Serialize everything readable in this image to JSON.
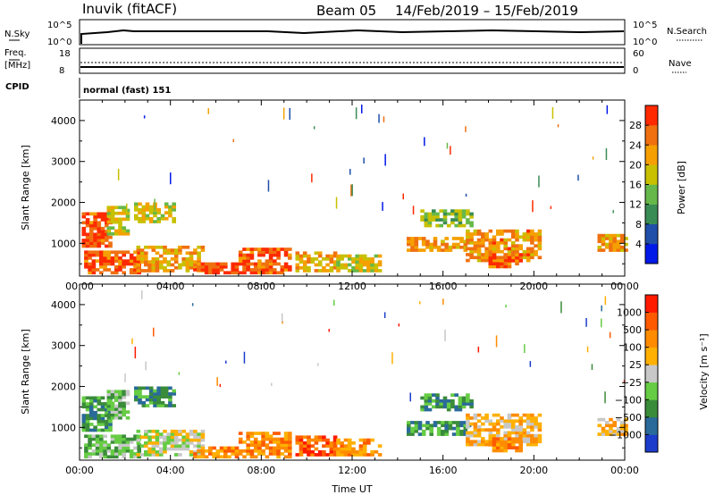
{
  "header": {
    "station": "Inuvik (fitACF)",
    "beam": "Beam 05",
    "date_range": "14/Feb/2019 – 15/Feb/2019"
  },
  "strip_nsky": {
    "left_label": "N.Sky",
    "left_ticks": [
      "10^5",
      "10^0"
    ],
    "right_ticks": [
      "10^5",
      "10^0"
    ],
    "right_label": "N.Search"
  },
  "strip_freq": {
    "left_label_top": "Freq.",
    "left_label_bottom": "[MHz]",
    "left_ticks": [
      "18",
      "8"
    ],
    "right_ticks": [
      "60",
      "0"
    ],
    "right_label": "Nave"
  },
  "strip_cpid": {
    "left_label": "CPID",
    "text": "normal (fast) 151"
  },
  "colors": {
    "power_scale": [
      "#0018e8",
      "#1f4fa8",
      "#3a8c55",
      "#66b84a",
      "#c8c000",
      "#f5a000",
      "#f07010",
      "#ff2a00"
    ],
    "velocity_scale": [
      "#ff1a00",
      "#ff5a00",
      "#ff8c00",
      "#ffb000",
      "#c8c8c8",
      "#66cc44",
      "#3a8c3a",
      "#2a6a9a",
      "#1c3ccc"
    ]
  },
  "chart_data": [
    {
      "type": "heatmap",
      "name": "power",
      "ylabel": "Slant Range [km]",
      "xlabel": "",
      "x_ticks": [
        "00:00",
        "04:00",
        "08:00",
        "12:00",
        "16:00",
        "20:00",
        "00:00"
      ],
      "y_ticks": [
        "1000",
        "2000",
        "3000",
        "4000"
      ],
      "ylim": [
        200,
        4500
      ],
      "xlim_hours": [
        0,
        24
      ],
      "colorbar_label": "Power [dB]",
      "colorbar_ticks": [
        "4",
        "8",
        "12",
        "16",
        "20",
        "24",
        "28"
      ],
      "colorbar_range": [
        0,
        32
      ],
      "regions": [
        {
          "t0": 0.1,
          "t1": 1.3,
          "r0": 900,
          "r1": 1750,
          "lvl": 6.6
        },
        {
          "t0": 1.2,
          "t1": 2.2,
          "r0": 1200,
          "r1": 1900,
          "lvl": 4.0
        },
        {
          "t0": 2.4,
          "t1": 4.2,
          "r0": 1500,
          "r1": 2000,
          "lvl": 4.2
        },
        {
          "t0": 0.2,
          "t1": 2.6,
          "r0": 250,
          "r1": 800,
          "lvl": 6.2
        },
        {
          "t0": 2.5,
          "t1": 5.5,
          "r0": 300,
          "r1": 900,
          "lvl": 5.0
        },
        {
          "t0": 5.0,
          "t1": 7.0,
          "r0": 250,
          "r1": 500,
          "lvl": 6.6
        },
        {
          "t0": 7.0,
          "t1": 9.3,
          "r0": 250,
          "r1": 850,
          "lvl": 6.4
        },
        {
          "t0": 9.5,
          "t1": 11.2,
          "r0": 300,
          "r1": 800,
          "lvl": 4.8
        },
        {
          "t0": 11.3,
          "t1": 13.2,
          "r0": 300,
          "r1": 700,
          "lvl": 4.2
        },
        {
          "t0": 14.4,
          "t1": 17.2,
          "r0": 800,
          "r1": 1100,
          "lvl": 5.2
        },
        {
          "t0": 15.0,
          "t1": 17.2,
          "r0": 1400,
          "r1": 1800,
          "lvl": 3.2
        },
        {
          "t0": 17.0,
          "t1": 20.2,
          "r0": 550,
          "r1": 1300,
          "lvl": 5.4
        },
        {
          "t0": 18.0,
          "t1": 19.5,
          "r0": 400,
          "r1": 700,
          "lvl": 6.3
        },
        {
          "t0": 22.8,
          "t1": 24.0,
          "r0": 800,
          "r1": 1200,
          "lvl": 5.3
        }
      ]
    },
    {
      "type": "heatmap",
      "name": "velocity",
      "ylabel": "Slant Range [km]",
      "xlabel": "Time UT",
      "x_ticks": [
        "00:00",
        "04:00",
        "08:00",
        "12:00",
        "16:00",
        "20:00",
        "00:00"
      ],
      "y_ticks": [
        "1000",
        "2000",
        "3000",
        "4000"
      ],
      "ylim": [
        200,
        4500
      ],
      "xlim_hours": [
        0,
        24
      ],
      "colorbar_label": "Velocity [m s⁻¹]",
      "colorbar_ticks": [
        "1000",
        "500",
        "100",
        "25",
        "−25",
        "−100",
        "−500",
        "−1000"
      ],
      "regions": [
        {
          "t0": 0.1,
          "t1": 1.3,
          "r0": 900,
          "r1": 1750,
          "lvl": 2
        },
        {
          "t0": 1.2,
          "t1": 2.2,
          "r0": 1200,
          "r1": 1900,
          "lvl": 3
        },
        {
          "t0": 2.4,
          "t1": 4.2,
          "r0": 1500,
          "r1": 2000,
          "lvl": 2
        },
        {
          "t0": 0.2,
          "t1": 2.6,
          "r0": 250,
          "r1": 800,
          "lvl": 3
        },
        {
          "t0": 2.5,
          "t1": 5.5,
          "r0": 300,
          "r1": 900,
          "lvl": 4
        },
        {
          "t0": 5.0,
          "t1": 7.0,
          "r0": 250,
          "r1": 500,
          "lvl": 6
        },
        {
          "t0": 7.0,
          "t1": 9.3,
          "r0": 250,
          "r1": 850,
          "lvl": 6
        },
        {
          "t0": 9.5,
          "t1": 11.2,
          "r0": 300,
          "r1": 800,
          "lvl": 7
        },
        {
          "t0": 11.3,
          "t1": 13.2,
          "r0": 300,
          "r1": 700,
          "lvl": 6
        },
        {
          "t0": 14.4,
          "t1": 17.2,
          "r0": 800,
          "r1": 1100,
          "lvl": 2
        },
        {
          "t0": 15.0,
          "t1": 17.2,
          "r0": 1400,
          "r1": 1800,
          "lvl": 2
        },
        {
          "t0": 17.0,
          "t1": 20.2,
          "r0": 550,
          "r1": 1300,
          "lvl": 5
        },
        {
          "t0": 18.0,
          "t1": 19.5,
          "r0": 400,
          "r1": 700,
          "lvl": 6
        },
        {
          "t0": 22.8,
          "t1": 24.0,
          "r0": 800,
          "r1": 1200,
          "lvl": 5
        }
      ]
    }
  ]
}
